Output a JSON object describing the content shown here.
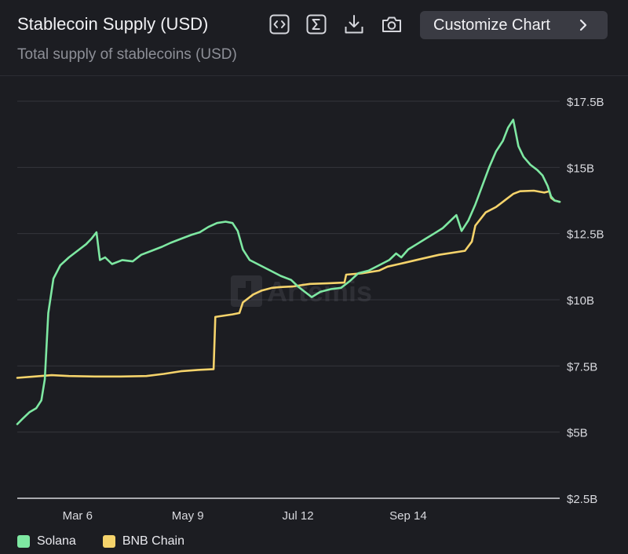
{
  "header": {
    "title": "Stablecoin Supply (USD)",
    "subtitle": "Total supply of stablecoins (USD)",
    "customize_label": "Customize Chart",
    "tools": [
      "embed-icon",
      "sum-icon",
      "download-icon",
      "camera-icon"
    ]
  },
  "watermark": "Artemis",
  "colors": {
    "solana": "#7ee8a2",
    "bnb": "#f5d36b",
    "background": "#1c1d22",
    "grid": "#34353c"
  },
  "chart_data": {
    "type": "line",
    "title": "Stablecoin Supply (USD)",
    "subtitle": "Total supply of stablecoins (USD)",
    "xlabel": "",
    "ylabel": "",
    "x_tick_labels": [
      "Mar 6",
      "May 9",
      "Jul 12",
      "Sep 14"
    ],
    "x_tick_days": [
      35,
      99,
      163,
      227
    ],
    "y_tick_labels": [
      "$17.5B",
      "$15B",
      "$12.5B",
      "$10B",
      "$7.5B",
      "$5B",
      "$2.5B"
    ],
    "y_ticks": [
      17.5,
      15,
      12.5,
      10,
      7.5,
      5,
      2.5
    ],
    "xlim": [
      0,
      315
    ],
    "ylim": [
      2.5,
      17.5
    ],
    "y_unit": "billions USD",
    "grid": true,
    "legend_position": "bottom-left",
    "series": [
      {
        "name": "Solana",
        "color": "#7ee8a2",
        "points": [
          [
            0,
            5.3
          ],
          [
            3,
            5.5
          ],
          [
            7,
            5.75
          ],
          [
            11,
            5.9
          ],
          [
            14,
            6.2
          ],
          [
            16,
            7.0
          ],
          [
            18,
            9.5
          ],
          [
            21,
            10.8
          ],
          [
            25,
            11.3
          ],
          [
            30,
            11.6
          ],
          [
            36,
            11.9
          ],
          [
            40,
            12.1
          ],
          [
            43,
            12.3
          ],
          [
            46,
            12.55
          ],
          [
            48,
            11.5
          ],
          [
            51,
            11.6
          ],
          [
            55,
            11.35
          ],
          [
            61,
            11.5
          ],
          [
            67,
            11.45
          ],
          [
            72,
            11.7
          ],
          [
            78,
            11.85
          ],
          [
            84,
            12.0
          ],
          [
            89,
            12.15
          ],
          [
            95,
            12.3
          ],
          [
            101,
            12.45
          ],
          [
            106,
            12.55
          ],
          [
            111,
            12.75
          ],
          [
            116,
            12.9
          ],
          [
            121,
            12.95
          ],
          [
            125,
            12.9
          ],
          [
            128,
            12.6
          ],
          [
            131,
            11.9
          ],
          [
            135,
            11.5
          ],
          [
            141,
            11.3
          ],
          [
            147,
            11.1
          ],
          [
            153,
            10.9
          ],
          [
            159,
            10.75
          ],
          [
            163,
            10.5
          ],
          [
            167,
            10.3
          ],
          [
            171,
            10.1
          ],
          [
            176,
            10.3
          ],
          [
            182,
            10.4
          ],
          [
            188,
            10.45
          ],
          [
            193,
            10.7
          ],
          [
            198,
            11.0
          ],
          [
            204,
            11.1
          ],
          [
            210,
            11.3
          ],
          [
            216,
            11.5
          ],
          [
            220,
            11.75
          ],
          [
            223,
            11.6
          ],
          [
            227,
            11.9
          ],
          [
            232,
            12.1
          ],
          [
            237,
            12.3
          ],
          [
            242,
            12.5
          ],
          [
            247,
            12.7
          ],
          [
            251,
            12.95
          ],
          [
            255,
            13.2
          ],
          [
            258,
            12.6
          ],
          [
            262,
            13.0
          ],
          [
            266,
            13.6
          ],
          [
            270,
            14.3
          ],
          [
            274,
            15.0
          ],
          [
            278,
            15.6
          ],
          [
            282,
            16.0
          ],
          [
            285,
            16.5
          ],
          [
            288,
            16.8
          ],
          [
            291,
            15.8
          ],
          [
            294,
            15.4
          ],
          [
            298,
            15.1
          ],
          [
            302,
            14.9
          ],
          [
            305,
            14.7
          ],
          [
            308,
            14.3
          ],
          [
            310,
            13.9
          ],
          [
            312,
            13.75
          ],
          [
            315,
            13.7
          ]
        ]
      },
      {
        "name": "BNB Chain",
        "color": "#f5d36b",
        "points": [
          [
            0,
            7.05
          ],
          [
            10,
            7.1
          ],
          [
            20,
            7.15
          ],
          [
            30,
            7.12
          ],
          [
            45,
            7.1
          ],
          [
            60,
            7.1
          ],
          [
            75,
            7.12
          ],
          [
            85,
            7.2
          ],
          [
            95,
            7.3
          ],
          [
            105,
            7.35
          ],
          [
            114,
            7.38
          ],
          [
            115,
            9.35
          ],
          [
            125,
            9.45
          ],
          [
            129,
            9.5
          ],
          [
            131,
            9.9
          ],
          [
            137,
            10.2
          ],
          [
            142,
            10.35
          ],
          [
            148,
            10.45
          ],
          [
            153,
            10.48
          ],
          [
            160,
            10.5
          ],
          [
            165,
            10.55
          ],
          [
            170,
            10.6
          ],
          [
            180,
            10.62
          ],
          [
            190,
            10.65
          ],
          [
            191,
            10.95
          ],
          [
            200,
            11.0
          ],
          [
            210,
            11.1
          ],
          [
            215,
            11.25
          ],
          [
            225,
            11.4
          ],
          [
            235,
            11.55
          ],
          [
            245,
            11.7
          ],
          [
            260,
            11.85
          ],
          [
            264,
            12.2
          ],
          [
            266,
            12.8
          ],
          [
            272,
            13.3
          ],
          [
            278,
            13.5
          ],
          [
            284,
            13.8
          ],
          [
            288,
            14.0
          ],
          [
            292,
            14.1
          ],
          [
            300,
            14.12
          ],
          [
            306,
            14.05
          ],
          [
            309,
            14.1
          ],
          [
            310,
            13.85
          ],
          [
            312,
            13.75
          ],
          [
            315,
            13.7
          ]
        ]
      }
    ]
  }
}
